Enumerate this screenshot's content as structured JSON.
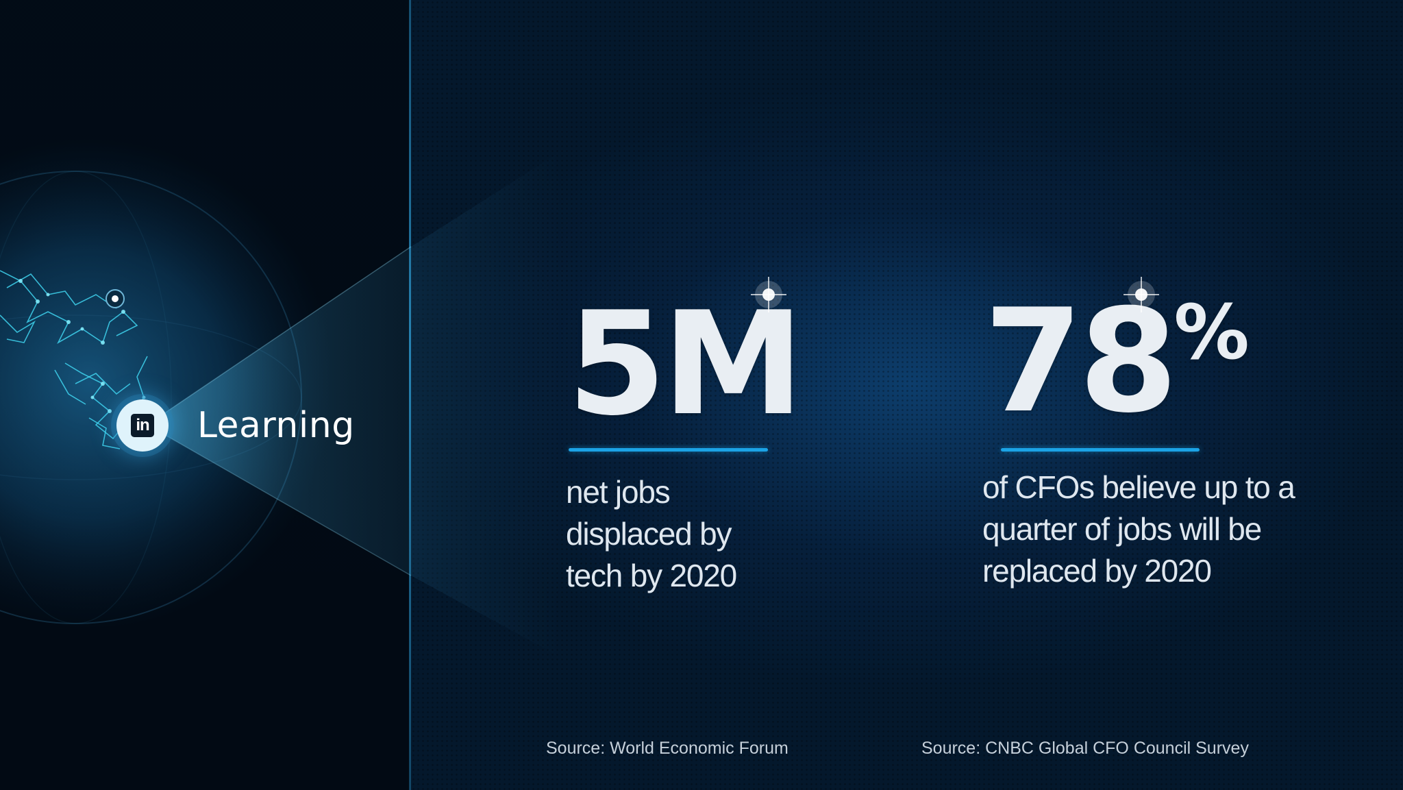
{
  "brand": {
    "logo_icon": "linkedin-in-icon",
    "logo_text": "in",
    "name": "Learning"
  },
  "stats": [
    {
      "value": "5M",
      "suffix": "",
      "caption_lines": [
        "net jobs",
        "displaced by",
        "tech by 2020"
      ],
      "source": "Source: World Economic Forum"
    },
    {
      "value": "78",
      "suffix": "%",
      "caption_lines": [
        "of CFOs believe up to a",
        "quarter of jobs will be",
        "replaced by 2020"
      ],
      "source": "Source: CNBC Global CFO Council Survey"
    }
  ],
  "colors": {
    "accent_rule": "#1ba3e6",
    "background": "#04182c",
    "stat_text": "#e9eef3"
  }
}
